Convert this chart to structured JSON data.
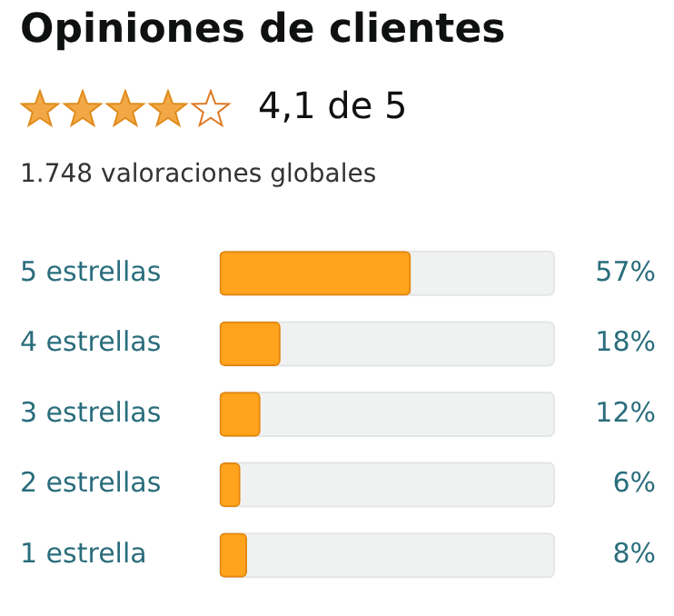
{
  "chart_data": {
    "type": "bar",
    "orientation": "horizontal",
    "title": "Opiniones de clientes",
    "subtitle": "4,1 de 5",
    "annotations": [
      "1.748 valoraciones globales"
    ],
    "categories": [
      "5 estrellas",
      "4 estrellas",
      "3 estrellas",
      "2 estrellas",
      "1 estrella"
    ],
    "values": [
      57,
      18,
      12,
      6,
      8
    ],
    "color": "#ffa41c",
    "xlim": [
      0,
      100
    ],
    "value_labels": [
      "57%",
      "18%",
      "12%",
      "6%",
      "8%"
    ],
    "tick_labels": "y",
    "grid": false,
    "legend": false
  }
}
